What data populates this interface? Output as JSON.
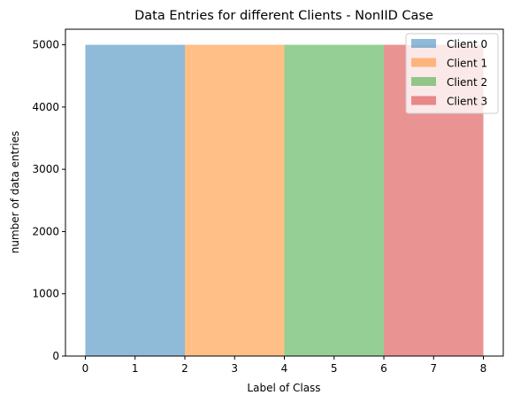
{
  "chart_data": {
    "type": "bar",
    "title": "Data Entries for different Clients - NonIID Case",
    "xlabel": "Label of Class",
    "ylabel": "number of data entries",
    "xlim": [
      -0.4,
      8.4
    ],
    "ylim": [
      0,
      5250
    ],
    "xticks": [
      0,
      1,
      2,
      3,
      4,
      5,
      6,
      7,
      8
    ],
    "yticks": [
      0,
      1000,
      2000,
      3000,
      4000,
      5000
    ],
    "grid": false,
    "legend_position": "top-right",
    "series": [
      {
        "name": "Client 0",
        "x_start": 0,
        "x_end": 2,
        "value": 5000,
        "color": "#1f77b4"
      },
      {
        "name": "Client 1",
        "x_start": 2,
        "x_end": 4,
        "value": 5000,
        "color": "#ff7f0e"
      },
      {
        "name": "Client 2",
        "x_start": 4,
        "x_end": 6,
        "value": 5000,
        "color": "#2ca02c"
      },
      {
        "name": "Client 3",
        "x_start": 6,
        "x_end": 8,
        "value": 5000,
        "color": "#d62728"
      }
    ],
    "bar_alpha": 0.5
  }
}
